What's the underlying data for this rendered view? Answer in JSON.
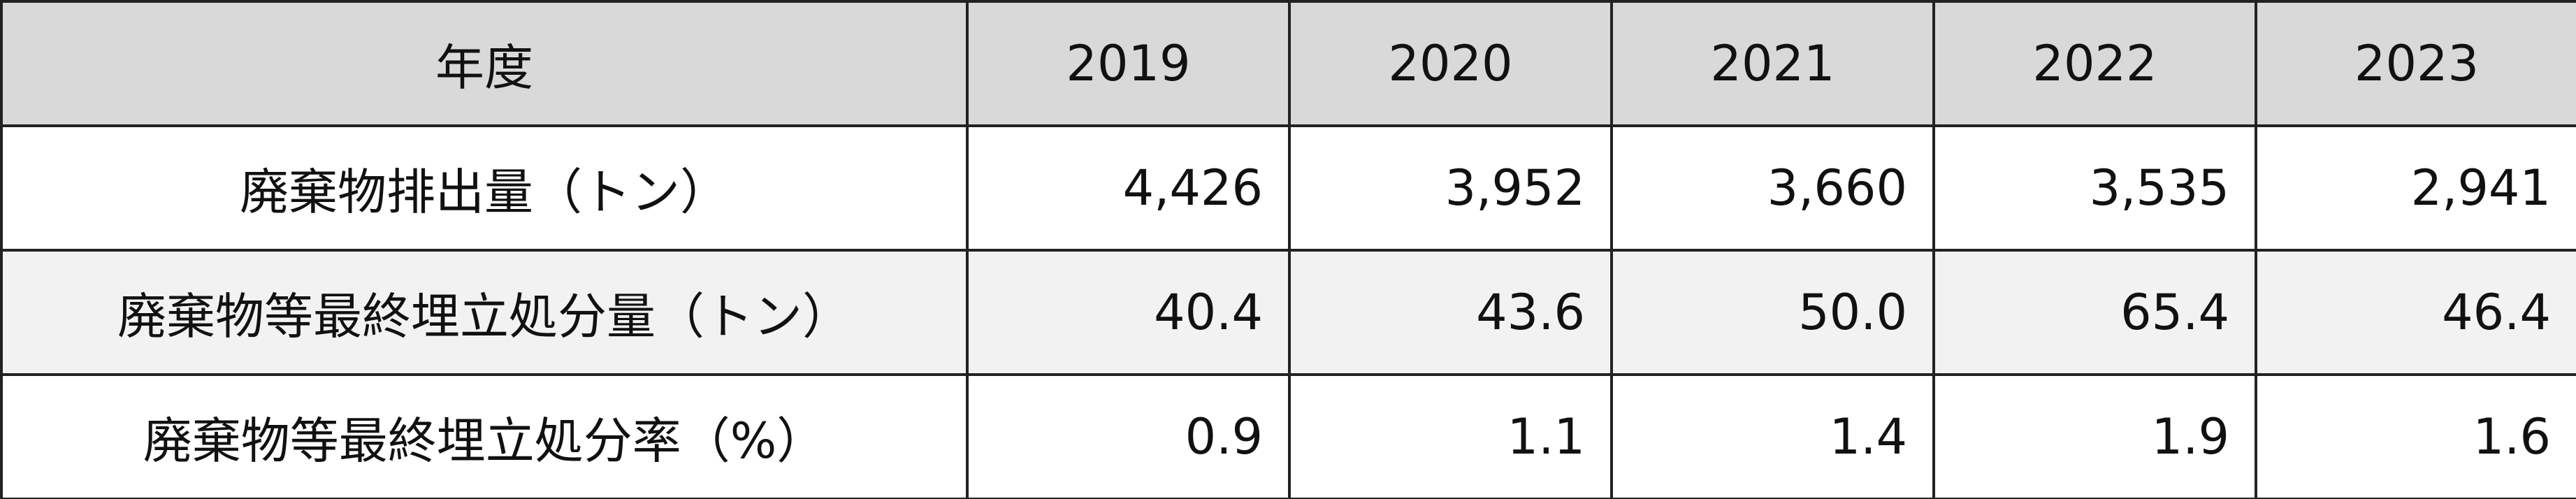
{
  "table": {
    "header": [
      "年度",
      "2019",
      "2020",
      "2021",
      "2022",
      "2023"
    ],
    "rows": [
      [
        "廃棄物排出量（トン）",
        "4,426",
        "3,952",
        "3,660",
        "3,535",
        "2,941"
      ],
      [
        "廃棄物等最終埋立処分量（トン）",
        "40.4",
        "43.6",
        "50.0",
        "65.4",
        "46.4"
      ],
      [
        "廃棄物等最終埋立処分率（%）",
        "0.9",
        "1.1",
        "1.4",
        "1.9",
        "1.6"
      ]
    ]
  }
}
